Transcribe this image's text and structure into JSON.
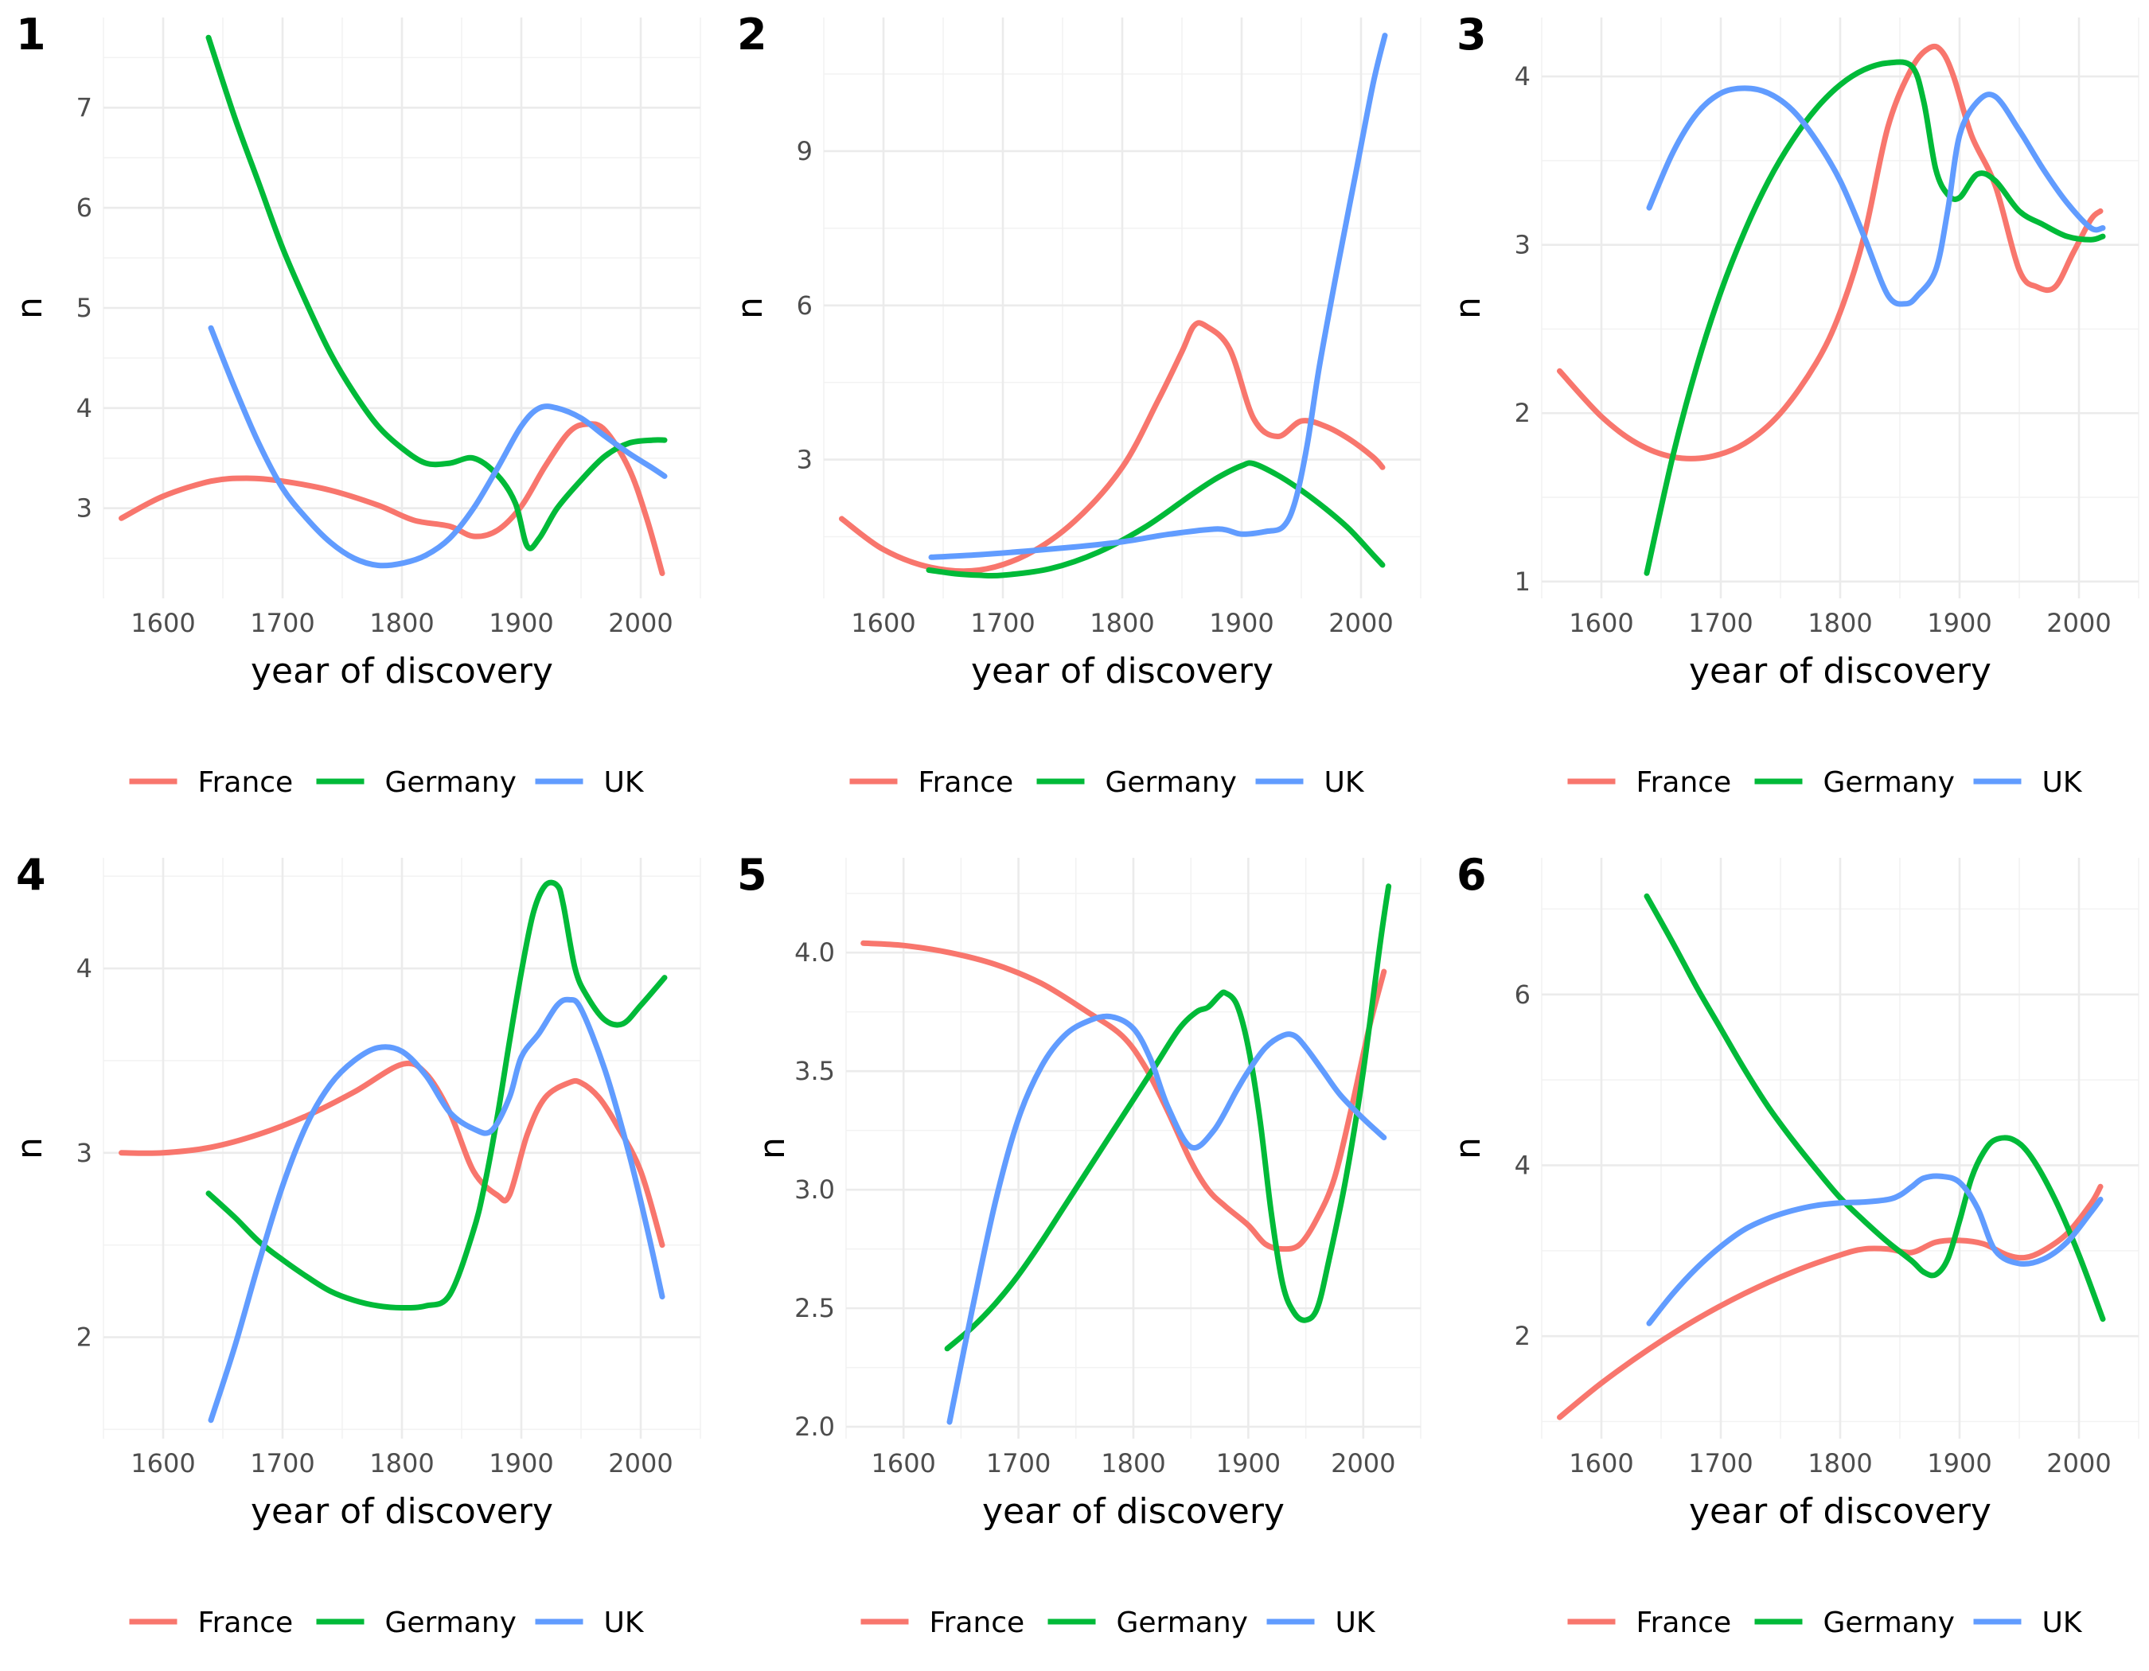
{
  "colors": {
    "France": "#F8766D",
    "Germany": "#00BA38",
    "UK": "#619CFF"
  },
  "chart_data": [
    {
      "type": "line",
      "panel_label": "1",
      "xlabel": "year of discovery",
      "ylabel": "n",
      "xlim": [
        1550,
        2050
      ],
      "ylim": [
        2.1,
        7.9
      ],
      "x_ticks": [
        1600,
        1700,
        1800,
        1900,
        2000
      ],
      "y_ticks": [
        3,
        4,
        5,
        6,
        7
      ],
      "legend": [
        "France",
        "Germany",
        "UK"
      ],
      "legend_position": "bottom",
      "series": [
        {
          "name": "France",
          "x": [
            1565,
            1600,
            1640,
            1670,
            1700,
            1740,
            1780,
            1810,
            1840,
            1860,
            1880,
            1900,
            1920,
            1940,
            1955,
            1970,
            1990,
            2005,
            2018
          ],
          "y": [
            2.9,
            3.12,
            3.27,
            3.3,
            3.27,
            3.18,
            3.03,
            2.88,
            2.82,
            2.72,
            2.78,
            3.02,
            3.42,
            3.76,
            3.84,
            3.78,
            3.4,
            2.9,
            2.35
          ]
        },
        {
          "name": "Germany",
          "x": [
            1638,
            1660,
            1680,
            1700,
            1720,
            1740,
            1760,
            1780,
            1800,
            1820,
            1840,
            1860,
            1880,
            1895,
            1905,
            1915,
            1930,
            1950,
            1970,
            1990,
            2010,
            2020
          ],
          "y": [
            7.7,
            6.9,
            6.25,
            5.6,
            5.05,
            4.55,
            4.15,
            3.82,
            3.6,
            3.45,
            3.45,
            3.5,
            3.33,
            3.05,
            2.62,
            2.7,
            3.0,
            3.28,
            3.52,
            3.65,
            3.68,
            3.68
          ]
        },
        {
          "name": "UK",
          "x": [
            1640,
            1660,
            1680,
            1700,
            1720,
            1740,
            1760,
            1780,
            1800,
            1820,
            1840,
            1860,
            1880,
            1900,
            1915,
            1930,
            1950,
            1970,
            1990,
            2010,
            2020
          ],
          "y": [
            4.8,
            4.2,
            3.65,
            3.2,
            2.9,
            2.66,
            2.5,
            2.43,
            2.45,
            2.53,
            2.7,
            3.0,
            3.4,
            3.82,
            4.0,
            4.0,
            3.9,
            3.72,
            3.55,
            3.4,
            3.32
          ]
        }
      ]
    },
    {
      "type": "line",
      "panel_label": "2",
      "xlabel": "year of discovery",
      "ylabel": "n",
      "xlim": [
        1550,
        2050
      ],
      "ylim": [
        0.3,
        11.6
      ],
      "x_ticks": [
        1600,
        1700,
        1800,
        1900,
        2000
      ],
      "y_ticks": [
        3,
        6,
        9
      ],
      "legend": [
        "France",
        "Germany",
        "UK"
      ],
      "legend_position": "bottom",
      "series": [
        {
          "name": "France",
          "x": [
            1565,
            1600,
            1640,
            1680,
            1720,
            1760,
            1800,
            1830,
            1850,
            1860,
            1870,
            1890,
            1910,
            1930,
            1950,
            1970,
            1990,
            2010,
            2018
          ],
          "y": [
            1.85,
            1.25,
            0.9,
            0.85,
            1.15,
            1.8,
            2.85,
            4.15,
            5.1,
            5.6,
            5.6,
            5.15,
            3.8,
            3.45,
            3.75,
            3.65,
            3.4,
            3.05,
            2.85
          ]
        },
        {
          "name": "Germany",
          "x": [
            1638,
            1660,
            1680,
            1700,
            1740,
            1780,
            1820,
            1860,
            1880,
            1900,
            1910,
            1930,
            1950,
            1970,
            1990,
            2010,
            2018
          ],
          "y": [
            0.85,
            0.78,
            0.75,
            0.75,
            0.88,
            1.2,
            1.7,
            2.35,
            2.65,
            2.88,
            2.92,
            2.7,
            2.4,
            2.05,
            1.65,
            1.15,
            0.95
          ]
        },
        {
          "name": "UK",
          "x": [
            1640,
            1680,
            1720,
            1760,
            1800,
            1840,
            1880,
            1900,
            1920,
            1935,
            1945,
            1955,
            1965,
            1980,
            1995,
            2010,
            2020
          ],
          "y": [
            1.1,
            1.15,
            1.22,
            1.3,
            1.4,
            1.55,
            1.65,
            1.55,
            1.6,
            1.7,
            2.2,
            3.3,
            4.8,
            6.7,
            8.5,
            10.3,
            11.25
          ]
        }
      ]
    },
    {
      "type": "line",
      "panel_label": "3",
      "xlabel": "year of discovery",
      "ylabel": "n",
      "xlim": [
        1550,
        2050
      ],
      "ylim": [
        0.9,
        4.35
      ],
      "x_ticks": [
        1600,
        1700,
        1800,
        1900,
        2000
      ],
      "y_ticks": [
        1,
        2,
        3,
        4
      ],
      "legend": [
        "France",
        "Germany",
        "UK"
      ],
      "legend_position": "bottom",
      "series": [
        {
          "name": "France",
          "x": [
            1565,
            1600,
            1630,
            1660,
            1690,
            1720,
            1750,
            1780,
            1800,
            1820,
            1840,
            1860,
            1875,
            1885,
            1895,
            1910,
            1930,
            1950,
            1965,
            1980,
            1995,
            2010,
            2018
          ],
          "y": [
            2.25,
            1.98,
            1.82,
            1.74,
            1.74,
            1.82,
            2.0,
            2.3,
            2.6,
            3.05,
            3.7,
            4.05,
            4.17,
            4.15,
            4.0,
            3.65,
            3.35,
            2.85,
            2.75,
            2.75,
            2.95,
            3.15,
            3.2
          ]
        },
        {
          "name": "Germany",
          "x": [
            1638,
            1660,
            1680,
            1700,
            1720,
            1740,
            1760,
            1780,
            1800,
            1820,
            1840,
            1860,
            1870,
            1880,
            1890,
            1900,
            1915,
            1930,
            1950,
            1970,
            1990,
            2010,
            2020
          ],
          "y": [
            1.05,
            1.75,
            2.28,
            2.72,
            3.08,
            3.38,
            3.62,
            3.81,
            3.95,
            4.04,
            4.08,
            4.06,
            3.85,
            3.45,
            3.3,
            3.28,
            3.42,
            3.38,
            3.2,
            3.12,
            3.05,
            3.03,
            3.05
          ]
        },
        {
          "name": "UK",
          "x": [
            1640,
            1660,
            1680,
            1700,
            1720,
            1740,
            1760,
            1780,
            1800,
            1820,
            1840,
            1855,
            1865,
            1880,
            1890,
            1900,
            1915,
            1930,
            1950,
            1970,
            1990,
            2010,
            2020
          ],
          "y": [
            3.22,
            3.55,
            3.78,
            3.9,
            3.93,
            3.9,
            3.8,
            3.62,
            3.38,
            3.05,
            2.7,
            2.65,
            2.7,
            2.85,
            3.2,
            3.65,
            3.85,
            3.88,
            3.68,
            3.45,
            3.25,
            3.1,
            3.1
          ]
        }
      ]
    },
    {
      "type": "line",
      "panel_label": "4",
      "xlabel": "year of discovery",
      "ylabel": "n",
      "xlim": [
        1550,
        2050
      ],
      "ylim": [
        1.45,
        4.6
      ],
      "x_ticks": [
        1600,
        1700,
        1800,
        1900,
        2000
      ],
      "y_ticks": [
        2,
        3,
        4
      ],
      "legend": [
        "France",
        "Germany",
        "UK"
      ],
      "legend_position": "bottom",
      "series": [
        {
          "name": "France",
          "x": [
            1565,
            1600,
            1640,
            1680,
            1720,
            1760,
            1800,
            1820,
            1840,
            1860,
            1880,
            1890,
            1905,
            1920,
            1940,
            1950,
            1965,
            1980,
            2000,
            2018
          ],
          "y": [
            3.0,
            3.0,
            3.03,
            3.1,
            3.2,
            3.33,
            3.48,
            3.43,
            3.22,
            2.9,
            2.77,
            2.77,
            3.1,
            3.3,
            3.38,
            3.38,
            3.3,
            3.15,
            2.9,
            2.5
          ]
        },
        {
          "name": "Germany",
          "x": [
            1638,
            1660,
            1680,
            1700,
            1720,
            1740,
            1760,
            1780,
            1800,
            1820,
            1840,
            1860,
            1870,
            1880,
            1890,
            1900,
            1910,
            1920,
            1930,
            1935,
            1945,
            1955,
            1970,
            1985,
            2000,
            2020
          ],
          "y": [
            2.78,
            2.65,
            2.52,
            2.42,
            2.33,
            2.25,
            2.2,
            2.17,
            2.16,
            2.17,
            2.23,
            2.58,
            2.85,
            3.2,
            3.6,
            3.98,
            4.3,
            4.45,
            4.45,
            4.35,
            4.0,
            3.85,
            3.72,
            3.7,
            3.8,
            3.95
          ]
        },
        {
          "name": "UK",
          "x": [
            1640,
            1660,
            1680,
            1700,
            1720,
            1740,
            1760,
            1780,
            1800,
            1820,
            1840,
            1860,
            1875,
            1890,
            1900,
            1915,
            1930,
            1940,
            1950,
            1970,
            1990,
            2005,
            2018
          ],
          "y": [
            1.55,
            1.95,
            2.4,
            2.82,
            3.15,
            3.37,
            3.5,
            3.57,
            3.55,
            3.42,
            3.22,
            3.13,
            3.12,
            3.3,
            3.52,
            3.65,
            3.8,
            3.83,
            3.78,
            3.45,
            3.0,
            2.6,
            2.22
          ]
        }
      ]
    },
    {
      "type": "line",
      "panel_label": "5",
      "xlabel": "year of discovery",
      "ylabel": "n",
      "xlim": [
        1550,
        2050
      ],
      "ylim": [
        1.95,
        4.4
      ],
      "x_ticks": [
        1600,
        1700,
        1800,
        1900,
        2000
      ],
      "y_ticks": [
        2.0,
        2.5,
        3.0,
        3.5,
        4.0
      ],
      "y_tick_labels": [
        "2.0",
        "2.5",
        "3.0",
        "3.5",
        "4.0"
      ],
      "legend": [
        "France",
        "Germany",
        "UK"
      ],
      "legend_position": "bottom",
      "series": [
        {
          "name": "France",
          "x": [
            1565,
            1600,
            1640,
            1680,
            1720,
            1760,
            1790,
            1810,
            1830,
            1850,
            1865,
            1880,
            1900,
            1915,
            1930,
            1945,
            1960,
            1975,
            1990,
            2005,
            2018
          ],
          "y": [
            4.04,
            4.03,
            4.0,
            3.95,
            3.87,
            3.75,
            3.65,
            3.52,
            3.33,
            3.12,
            3.0,
            2.93,
            2.85,
            2.77,
            2.75,
            2.77,
            2.88,
            3.05,
            3.35,
            3.68,
            3.92
          ]
        },
        {
          "name": "Germany",
          "x": [
            1638,
            1660,
            1680,
            1700,
            1720,
            1740,
            1760,
            1780,
            1800,
            1820,
            1840,
            1855,
            1865,
            1875,
            1880,
            1890,
            1900,
            1910,
            1920,
            1930,
            1940,
            1950,
            1960,
            1970,
            1985,
            2000,
            2015,
            2022
          ],
          "y": [
            2.33,
            2.42,
            2.52,
            2.64,
            2.78,
            2.93,
            3.08,
            3.23,
            3.38,
            3.53,
            3.68,
            3.75,
            3.77,
            3.82,
            3.83,
            3.78,
            3.6,
            3.3,
            2.9,
            2.6,
            2.48,
            2.45,
            2.5,
            2.7,
            3.05,
            3.5,
            4.05,
            4.28
          ]
        },
        {
          "name": "UK",
          "x": [
            1640,
            1660,
            1680,
            1700,
            1720,
            1740,
            1760,
            1780,
            1800,
            1815,
            1830,
            1850,
            1870,
            1890,
            1900,
            1915,
            1930,
            1940,
            1950,
            1965,
            1980,
            2000,
            2018
          ],
          "y": [
            2.02,
            2.5,
            2.95,
            3.3,
            3.52,
            3.65,
            3.71,
            3.73,
            3.68,
            3.55,
            3.35,
            3.18,
            3.25,
            3.42,
            3.5,
            3.6,
            3.65,
            3.65,
            3.6,
            3.5,
            3.4,
            3.3,
            3.22
          ]
        }
      ]
    },
    {
      "type": "line",
      "panel_label": "6",
      "xlabel": "year of discovery",
      "ylabel": "n",
      "xlim": [
        1550,
        2050
      ],
      "ylim": [
        0.8,
        7.6
      ],
      "x_ticks": [
        1600,
        1700,
        1800,
        1900,
        2000
      ],
      "y_ticks": [
        2,
        4,
        6
      ],
      "legend": [
        "France",
        "Germany",
        "UK"
      ],
      "legend_position": "bottom",
      "series": [
        {
          "name": "France",
          "x": [
            1565,
            1600,
            1640,
            1680,
            1720,
            1760,
            1800,
            1820,
            1840,
            1860,
            1880,
            1900,
            1920,
            1940,
            1955,
            1970,
            1990,
            2010,
            2018
          ],
          "y": [
            1.05,
            1.45,
            1.85,
            2.2,
            2.5,
            2.75,
            2.95,
            3.02,
            3.02,
            2.98,
            3.1,
            3.12,
            3.08,
            2.95,
            2.92,
            3.0,
            3.2,
            3.55,
            3.75
          ]
        },
        {
          "name": "Germany",
          "x": [
            1638,
            1660,
            1680,
            1700,
            1720,
            1740,
            1760,
            1780,
            1800,
            1820,
            1840,
            1860,
            1870,
            1880,
            1890,
            1900,
            1910,
            1920,
            1930,
            1945,
            1960,
            1980,
            2000,
            2020
          ],
          "y": [
            7.15,
            6.6,
            6.08,
            5.6,
            5.12,
            4.68,
            4.3,
            3.95,
            3.62,
            3.35,
            3.1,
            2.88,
            2.75,
            2.72,
            2.9,
            3.35,
            3.85,
            4.15,
            4.3,
            4.3,
            4.1,
            3.6,
            2.95,
            2.2
          ]
        },
        {
          "name": "UK",
          "x": [
            1640,
            1660,
            1680,
            1700,
            1720,
            1740,
            1760,
            1780,
            1800,
            1820,
            1840,
            1850,
            1860,
            1870,
            1885,
            1900,
            1915,
            1930,
            1950,
            1970,
            1990,
            2010,
            2018
          ],
          "y": [
            2.15,
            2.5,
            2.8,
            3.05,
            3.25,
            3.38,
            3.47,
            3.53,
            3.56,
            3.57,
            3.6,
            3.65,
            3.75,
            3.85,
            3.87,
            3.8,
            3.5,
            3.0,
            2.85,
            2.9,
            3.1,
            3.45,
            3.6
          ]
        }
      ]
    }
  ]
}
